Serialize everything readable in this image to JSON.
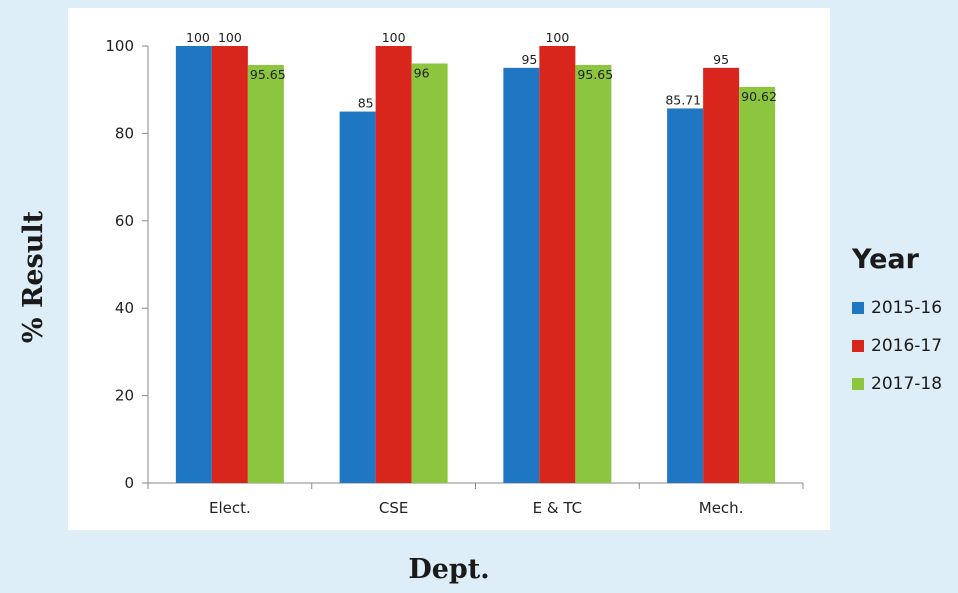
{
  "chart_data": {
    "type": "bar",
    "categories": [
      "Elect.",
      "CSE",
      "E & TC",
      "Mech."
    ],
    "series": [
      {
        "name": "2015-16",
        "color": "#1f77c4",
        "values": [
          100,
          85,
          95,
          85.71
        ],
        "labels": [
          "100",
          "85",
          "95",
          "85.71"
        ]
      },
      {
        "name": "2016-17",
        "color": "#d9261c",
        "values": [
          100,
          100,
          100,
          95
        ],
        "labels": [
          "100",
          "100",
          "100",
          "95"
        ]
      },
      {
        "name": "2017-18",
        "color": "#8cc63f",
        "values": [
          95.65,
          96,
          95.65,
          90.62
        ],
        "labels": [
          "95.65",
          "96",
          "95.65",
          "90.62"
        ]
      }
    ],
    "xlabel": "Dept.",
    "ylabel": "% Result",
    "legend_title": "Year",
    "legend_placement": "right",
    "ylim": [
      0,
      100
    ],
    "yticks": [
      "0",
      "20",
      "40",
      "60",
      "80",
      "100"
    ],
    "grid": false
  }
}
